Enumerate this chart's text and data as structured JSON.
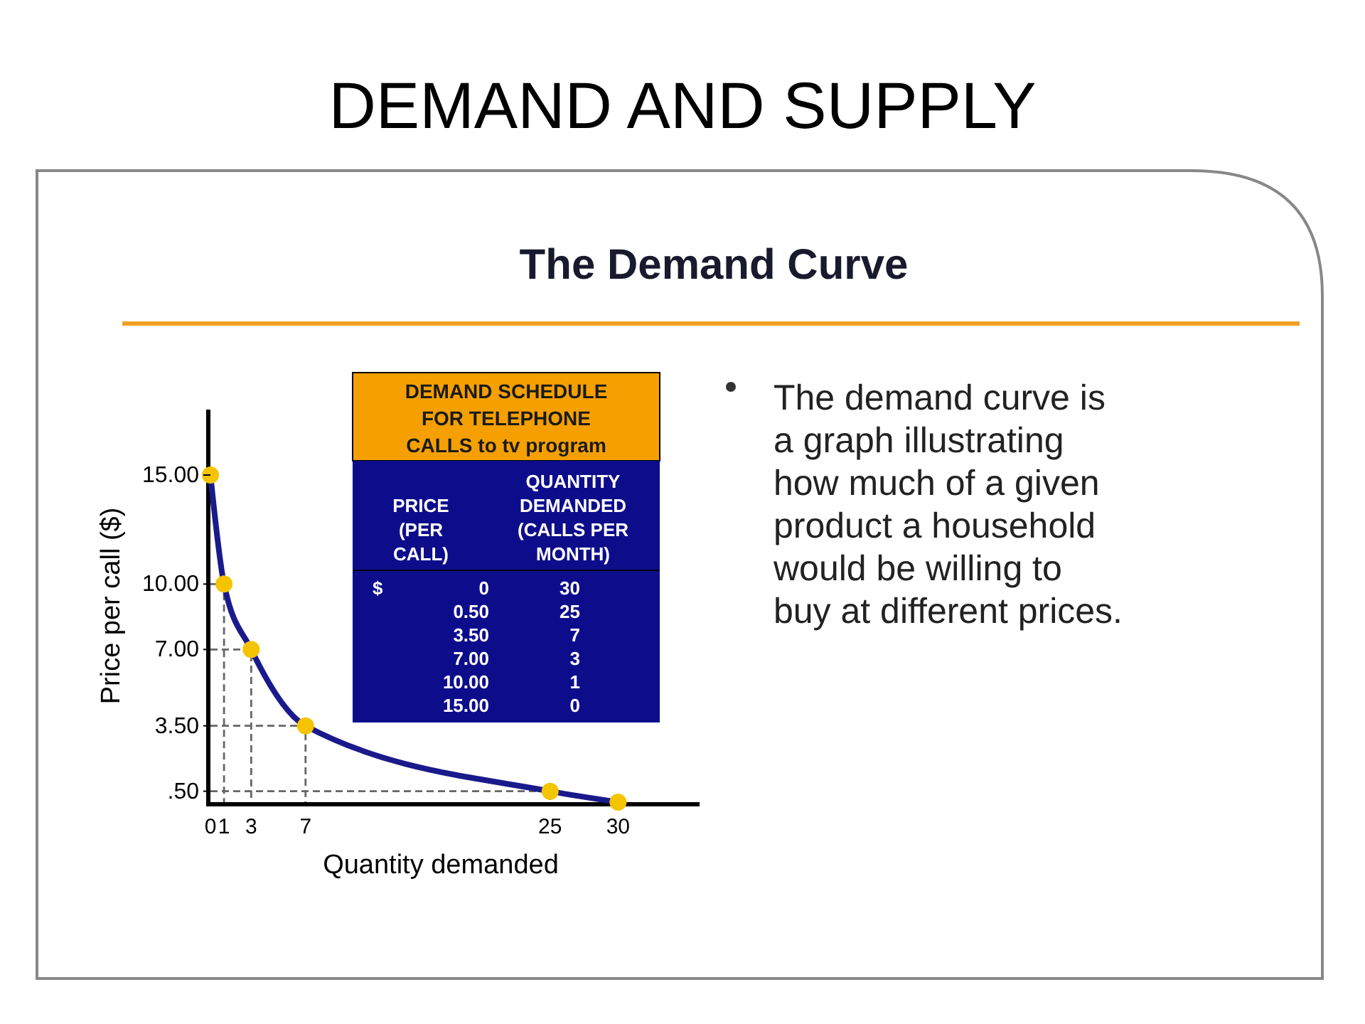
{
  "chart_data": {
    "type": "line",
    "title": "DEMAND AND SUPPLY",
    "subtitle": "The Demand Curve",
    "xlabel": "Quantity demanded",
    "ylabel": "Price per call ($)",
    "x": [
      0,
      1,
      3,
      7,
      25,
      30
    ],
    "series": [
      {
        "color": "#1a1a8c",
        "values": [
          15,
          10,
          7,
          3.5,
          0.5,
          0
        ],
        "marker": "circle",
        "line_style": "solid"
      }
    ],
    "grid": false,
    "xlim": [
      0,
      36
    ],
    "xticks": [
      0,
      1,
      3,
      7,
      25,
      30
    ],
    "ylim": [
      0,
      18
    ],
    "yticks": [
      {
        "value": 0.5,
        "label": ".50"
      },
      {
        "value": 3.5,
        "label": "3.50"
      },
      {
        "value": 7,
        "label": "7.00"
      },
      {
        "value": 10,
        "label": "10.00"
      },
      {
        "value": 15,
        "label": "15.00"
      }
    ],
    "annotations": [
      "DEMAND SCHEDULE",
      "FOR TELEPHONE",
      "CALLS to tv program",
      "PRICE (PER CALL)",
      "QUANTITY DEMANDED (CALLS PER MONTH)",
      "$ 0",
      "0.50",
      "3.50",
      "7.00",
      "10.00",
      "15.00",
      "30",
      "25",
      "7",
      "3",
      "1",
      "0",
      "The demand curve is",
      "a graph illustrating",
      "how much of a given",
      "product a household",
      "would be willing to",
      "buy at different prices."
    ]
  }
}
